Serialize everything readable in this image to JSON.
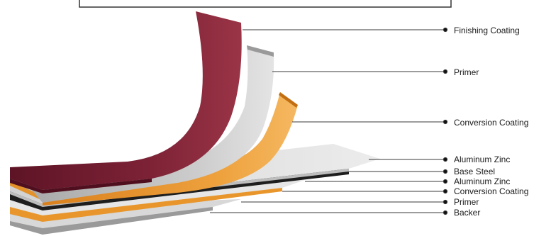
{
  "layers": [
    {
      "id": "finishing-coating",
      "label": "Finishing Coating",
      "color": "#7a1f33"
    },
    {
      "id": "primer-top",
      "label": "Primer",
      "color": "#c8c8c8"
    },
    {
      "id": "conversion-coating-top",
      "label": "Conversion Coating",
      "color": "#e8962c"
    },
    {
      "id": "aluminum-zinc-top",
      "label": "Aluminum Zinc",
      "color": "#dcdcdc"
    },
    {
      "id": "base-steel",
      "label": "Base Steel",
      "color": "#1e1e1e"
    },
    {
      "id": "aluminum-zinc-bottom",
      "label": "Aluminum Zinc",
      "color": "#e0e0e0"
    },
    {
      "id": "conversion-coating-bottom",
      "label": "Conversion Coating",
      "color": "#e8962c"
    },
    {
      "id": "primer-bottom",
      "label": "Primer",
      "color": "#cfcfcf"
    },
    {
      "id": "backer",
      "label": "Backer",
      "color": "#8a8a8a"
    }
  ]
}
